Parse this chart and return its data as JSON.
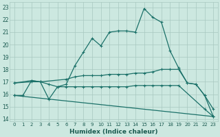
{
  "xlabel": "Humidex (Indice chaleur)",
  "bg_color": "#cce8e0",
  "grid_color": "#a8c8c0",
  "line_color": "#1a7068",
  "xlim": [
    -0.5,
    23.5
  ],
  "ylim": [
    13.8,
    23.4
  ],
  "xtick_labels": [
    "0",
    "1",
    "2",
    "3",
    "4",
    "5",
    "6",
    "7",
    "8",
    "9",
    "10",
    "11",
    "12",
    "13",
    "14",
    "15",
    "16",
    "17",
    "18",
    "19",
    "20",
    "21",
    "22",
    "23"
  ],
  "ytick_labels": [
    "14",
    "15",
    "16",
    "17",
    "18",
    "19",
    "20",
    "21",
    "22",
    "23"
  ],
  "yticks": [
    14,
    15,
    16,
    17,
    18,
    19,
    20,
    21,
    22,
    23
  ],
  "line1_x": [
    0,
    1,
    2,
    3,
    4,
    5,
    6,
    7,
    8,
    9,
    10,
    11,
    12,
    13,
    14,
    15,
    16,
    17,
    18,
    19,
    20,
    21,
    22,
    23
  ],
  "line1_y": [
    15.9,
    15.9,
    17.1,
    17.0,
    15.6,
    16.6,
    16.8,
    18.3,
    19.4,
    20.5,
    19.9,
    21.0,
    21.1,
    21.1,
    21.0,
    22.9,
    22.2,
    21.8,
    19.5,
    18.1,
    16.9,
    16.8,
    15.9,
    14.8
  ],
  "line2_x": [
    0,
    2,
    3,
    6,
    7,
    8,
    9,
    10,
    11,
    12,
    13,
    14,
    15,
    16,
    17,
    18,
    19,
    20,
    21,
    22,
    23
  ],
  "line2_y": [
    16.9,
    17.1,
    17.0,
    17.2,
    17.4,
    17.5,
    17.5,
    17.5,
    17.6,
    17.6,
    17.6,
    17.7,
    17.7,
    17.8,
    18.0,
    18.0,
    18.0,
    16.9,
    16.8,
    15.9,
    14.2
  ],
  "line3_x": [
    0,
    2,
    3,
    4,
    5,
    6,
    7,
    8,
    9,
    10,
    11,
    12,
    13,
    14,
    15,
    16,
    17,
    18,
    19,
    22,
    23
  ],
  "line3_y": [
    16.9,
    17.0,
    17.0,
    16.8,
    16.6,
    16.6,
    16.6,
    16.6,
    16.6,
    16.6,
    16.6,
    16.6,
    16.6,
    16.7,
    16.7,
    16.7,
    16.7,
    16.7,
    16.7,
    14.8,
    14.2
  ],
  "line4_x": [
    0,
    23
  ],
  "line4_y": [
    15.9,
    14.2
  ]
}
